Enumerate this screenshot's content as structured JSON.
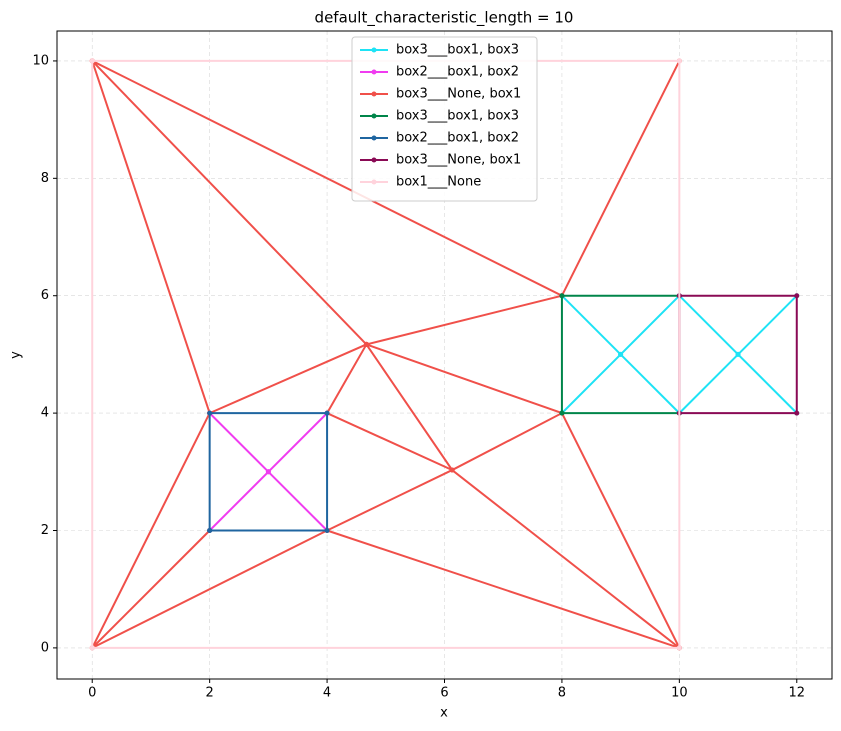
{
  "chart_data": {
    "type": "line",
    "title": "default_characteristic_length = 10",
    "x_label": "x",
    "y_label": "y",
    "xlim": [
      -0.6,
      12.6
    ],
    "ylim": [
      -0.53,
      10.51
    ],
    "xticks": [
      0,
      2,
      4,
      6,
      8,
      10,
      12
    ],
    "yticks": [
      0,
      2,
      4,
      6,
      8,
      10
    ],
    "grid": true,
    "legend": "upper center",
    "series": [
      {
        "name": "box3___box1, box3",
        "color": "#1ee3f5",
        "x": [
          8,
          9,
          10,
          null,
          8,
          9,
          10,
          null,
          10,
          11,
          12,
          null,
          10,
          11,
          12
        ],
        "values": [
          4,
          5,
          6,
          null,
          6,
          5,
          4,
          null,
          4,
          5,
          6,
          null,
          6,
          5,
          4
        ]
      },
      {
        "name": "box2___box1, box2",
        "color": "#f03cf0",
        "x": [
          2,
          3,
          4,
          null,
          2,
          3,
          4
        ],
        "values": [
          2,
          3,
          4,
          null,
          4,
          3,
          2
        ]
      },
      {
        "name": "box3___None, box1",
        "color": "#f0504a",
        "x": [
          2,
          4.67,
          4,
          6.13,
          4.67,
          8,
          6.13,
          4,
          0,
          2,
          null,
          4.67,
          0,
          8,
          4.67,
          null,
          0,
          2,
          0,
          null,
          8,
          10,
          4,
          null,
          6.13,
          10,
          null,
          8,
          10
        ],
        "values": [
          4,
          5.17,
          4,
          3.03,
          5.17,
          4,
          3.03,
          2,
          0,
          2,
          null,
          5.17,
          10,
          6,
          5.17,
          null,
          10,
          4,
          0,
          null,
          4,
          0,
          2,
          null,
          3.03,
          0,
          null,
          6,
          10
        ]
      },
      {
        "name": "box3___box1, box3",
        "color": "#00854a",
        "x": [
          10,
          8,
          8,
          10
        ],
        "values": [
          6,
          6,
          4,
          4
        ]
      },
      {
        "name": "box2___box1, box2",
        "color": "#1f65a0",
        "x": [
          2,
          4,
          4,
          2,
          2
        ],
        "values": [
          2,
          2,
          4,
          4,
          2
        ]
      },
      {
        "name": "box3___None, box1",
        "color": "#8a0a55",
        "x": [
          10,
          12,
          12,
          10,
          10
        ],
        "values": [
          6,
          6,
          4,
          4,
          6
        ]
      },
      {
        "name": "box1___None",
        "color": "#ffd3dc",
        "x": [
          0,
          10,
          10,
          0,
          0
        ],
        "values": [
          0,
          0,
          10,
          10,
          0
        ]
      }
    ]
  }
}
